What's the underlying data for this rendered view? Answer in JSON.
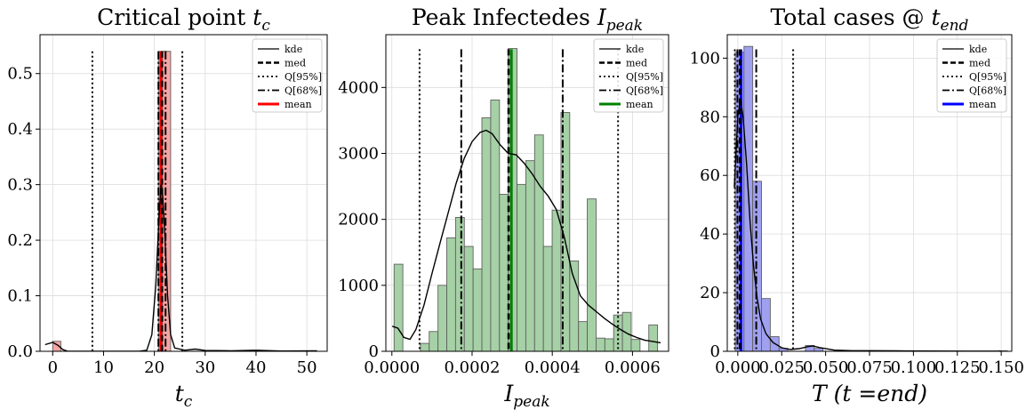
{
  "colors": {
    "kde": "#000000",
    "panel1_hist": "#f4a6a6",
    "panel1_mean": "#ff0000",
    "panel2_hist": "#a6d0a6",
    "panel2_mean": "#008000",
    "panel3_hist": "#a0a0f0",
    "panel3_mean": "#0000ff",
    "hist_edge": "#606060"
  },
  "chart_data": [
    {
      "type": "bar",
      "title": "Critical point",
      "title_symbol": "t",
      "title_sub": "c",
      "xlabel": "t",
      "xlabel_sub": "c",
      "ylabel": "",
      "xlim": [
        -2.5,
        54
      ],
      "ylim": [
        0,
        0.57
      ],
      "xticks": [
        "0",
        "10",
        "20",
        "30",
        "40",
        "50"
      ],
      "xtick_values": [
        0,
        10,
        20,
        30,
        40,
        50
      ],
      "yticks": [
        "0.0",
        "0.1",
        "0.2",
        "0.3",
        "0.4",
        "0.5"
      ],
      "ytick_values": [
        0,
        0.1,
        0.2,
        0.3,
        0.4,
        0.5
      ],
      "grid": true,
      "legend_position": "top-right",
      "legend": [
        "kde",
        "med",
        "Q[95%]",
        "Q[68%]",
        "mean"
      ],
      "histogram": {
        "bin_width": 1.6,
        "bins": [
          {
            "x": 0.0,
            "height": 0.018
          },
          {
            "x": 20.8,
            "height": 0.54
          },
          {
            "x": 21.6,
            "height": 0.54
          }
        ]
      },
      "kde": [
        [
          -1.5,
          0.012
        ],
        [
          0,
          0.016
        ],
        [
          1,
          0.011
        ],
        [
          2,
          0.003
        ],
        [
          3,
          0
        ],
        [
          17,
          0
        ],
        [
          18.5,
          0.002
        ],
        [
          19.5,
          0.03
        ],
        [
          20.3,
          0.12
        ],
        [
          20.9,
          0.24
        ],
        [
          21.3,
          0.3
        ],
        [
          21.6,
          0.285
        ],
        [
          22,
          0.22
        ],
        [
          22.6,
          0.1
        ],
        [
          23.2,
          0.03
        ],
        [
          24,
          0.006
        ],
        [
          26,
          0.002
        ],
        [
          28,
          0.004
        ],
        [
          30,
          0.0015
        ],
        [
          35,
          0.001
        ],
        [
          40,
          0.002
        ],
        [
          45,
          0.0005
        ],
        [
          52,
          0.0008
        ]
      ],
      "kde_visible_peak": 0.305,
      "lines": {
        "median": 21.5,
        "q95": [
          7.8,
          25.5
        ],
        "q68": [
          20.8,
          22.2
        ],
        "mean": 21.3,
        "line_top": 0.54
      }
    },
    {
      "type": "bar",
      "title": "Peak Infectedes",
      "title_symbol": "I",
      "title_sub": "peak",
      "xlabel": "I",
      "xlabel_sub": "peak",
      "ylabel": "",
      "xlim": [
        -1.5e-05,
        0.00069
      ],
      "ylim": [
        0,
        4800
      ],
      "xticks": [
        "0.0000",
        "0.0002",
        "0.0004",
        "0.0006"
      ],
      "xtick_values": [
        0,
        0.0002,
        0.0004,
        0.0006
      ],
      "yticks": [
        "0",
        "1000",
        "2000",
        "3000",
        "4000"
      ],
      "ytick_values": [
        0,
        1000,
        2000,
        3000,
        4000
      ],
      "grid": true,
      "legend_position": "top-right",
      "legend": [
        "kde",
        "med",
        "Q[95%]",
        "Q[68%]",
        "mean"
      ],
      "histogram": {
        "bin_start": 5.5e-06,
        "bin_width": 2.19e-05,
        "heights": [
          1320,
          0,
          0,
          120,
          300,
          1000,
          1720,
          2030,
          1590,
          1250,
          3540,
          3810,
          2380,
          4590,
          2530,
          2890,
          3280,
          1590,
          2140,
          3620,
          1370,
          450,
          2310,
          200,
          190,
          550,
          590,
          180,
          0,
          400
        ]
      },
      "kde": [
        [
          1e-06,
          380
        ],
        [
          1.5e-05,
          350
        ],
        [
          3e-05,
          210
        ],
        [
          4.5e-05,
          180
        ],
        [
          6e-05,
          330
        ],
        [
          8e-05,
          700
        ],
        [
          0.0001,
          1180
        ],
        [
          0.00012,
          1640
        ],
        [
          0.00014,
          2090
        ],
        [
          0.00016,
          2540
        ],
        [
          0.00018,
          2920
        ],
        [
          0.0002,
          3180
        ],
        [
          0.00022,
          3320
        ],
        [
          0.000235,
          3350
        ],
        [
          0.00025,
          3300
        ],
        [
          0.00027,
          3130
        ],
        [
          0.00029,
          3000
        ],
        [
          0.00031,
          2980
        ],
        [
          0.00033,
          2850
        ],
        [
          0.00035,
          2690
        ],
        [
          0.00037,
          2500
        ],
        [
          0.00039,
          2350
        ],
        [
          0.00041,
          2150
        ],
        [
          0.00043,
          1730
        ],
        [
          0.00045,
          1180
        ],
        [
          0.00047,
          840
        ],
        [
          0.00049,
          700
        ],
        [
          0.00051,
          600
        ],
        [
          0.00053,
          500
        ],
        [
          0.00055,
          410
        ],
        [
          0.00057,
          330
        ],
        [
          0.00059,
          260
        ],
        [
          0.00061,
          210
        ],
        [
          0.00063,
          170
        ],
        [
          0.00065,
          150
        ],
        [
          0.00067,
          130
        ]
      ],
      "lines": {
        "median": 0.000291,
        "q95": [
          6.9e-05,
          0.000564
        ],
        "q68": [
          0.000173,
          0.000426
        ],
        "mean": 0.000298,
        "line_top": 4580
      }
    },
    {
      "type": "bar",
      "title": "Total cases @",
      "title_symbol": "t",
      "title_sub": "end",
      "xlabel": "T (t =end)",
      "ylabel": "",
      "xlim": [
        -0.006,
        0.156
      ],
      "ylim": [
        0,
        108
      ],
      "xticks": [
        "0.000",
        "0.025",
        "0.050",
        "0.075",
        "0.100",
        "0.125",
        "0.150"
      ],
      "xtick_values": [
        0,
        0.025,
        0.05,
        0.075,
        0.1,
        0.125,
        0.15
      ],
      "yticks": [
        "0",
        "20",
        "40",
        "60",
        "80",
        "100"
      ],
      "ytick_values": [
        0,
        20,
        40,
        60,
        80,
        100
      ],
      "grid": true,
      "legend_position": "top-right",
      "legend": [
        "kde",
        "med",
        "Q[95%]",
        "Q[68%]",
        "mean"
      ],
      "histogram": {
        "bin_start": -0.0015,
        "bin_width": 0.005,
        "heights": [
          102,
          104,
          58,
          18,
          5,
          1,
          0,
          0,
          2,
          1,
          0,
          0,
          0,
          0,
          0,
          0,
          0,
          0,
          0,
          0,
          0,
          0,
          0,
          0,
          0,
          0,
          0,
          0,
          0,
          0,
          0.2
        ]
      },
      "kde": [
        [
          -0.002,
          56
        ],
        [
          0,
          80
        ],
        [
          0.0015,
          86
        ],
        [
          0.003,
          80
        ],
        [
          0.005,
          64
        ],
        [
          0.007,
          44
        ],
        [
          0.009,
          29
        ],
        [
          0.011,
          18
        ],
        [
          0.013,
          11
        ],
        [
          0.016,
          6
        ],
        [
          0.02,
          3
        ],
        [
          0.025,
          1.2
        ],
        [
          0.03,
          0.6
        ],
        [
          0.035,
          0.9
        ],
        [
          0.04,
          1.6
        ],
        [
          0.043,
          1.8
        ],
        [
          0.047,
          1.2
        ],
        [
          0.055,
          0.4
        ],
        [
          0.065,
          0.2
        ],
        [
          0.075,
          0.2
        ],
        [
          0.09,
          0.15
        ],
        [
          0.11,
          0.1
        ],
        [
          0.13,
          0.05
        ],
        [
          0.15,
          0.05
        ]
      ],
      "lines": {
        "median": 0.0012,
        "q95": [
          -0.0017,
          0.0315
        ],
        "q68": [
          -0.0002,
          0.0105
        ],
        "mean": 0.0018,
        "line_top": 103
      }
    }
  ]
}
